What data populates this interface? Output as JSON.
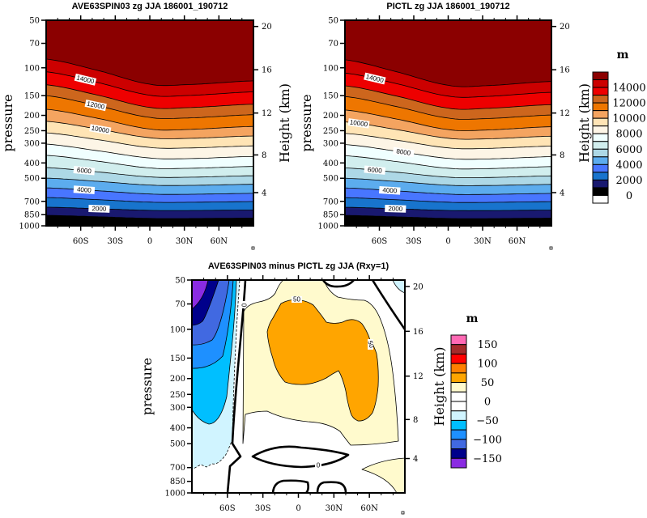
{
  "chart_data": [
    {
      "type": "contour",
      "title": "AVE63SPIN03 zg JJA 186001_190712",
      "ylabel": "pressure",
      "ylabel_right": "Height (km)",
      "xlim": [
        -90,
        90
      ],
      "x_tick_values": [
        -60,
        -30,
        0,
        30,
        60
      ],
      "x_ticks": [
        "60S",
        "30S",
        "0",
        "30N",
        "60N"
      ],
      "y_scale": "log",
      "ylim": [
        1000,
        50
      ],
      "y_ticks": [
        "50",
        "70",
        "100",
        "150",
        "200",
        "250",
        "300",
        "400",
        "500",
        "700",
        "850",
        "1000"
      ],
      "right_ticks": [
        "20",
        "16",
        "12",
        "8",
        "4"
      ],
      "levels": [
        15000,
        14000,
        13000,
        12000,
        11000,
        10000,
        9000,
        8000,
        7000,
        6000,
        5000,
        4000,
        3000,
        2000,
        1000
      ],
      "contour_lats": [
        -90,
        -45,
        0,
        30,
        90
      ],
      "contour_pressure_hPa": [
        [
          88,
          104,
          127,
          128,
          121
        ],
        [
          106,
          124,
          149,
          150,
          142
        ],
        [
          128,
          149,
          178,
          179,
          170
        ],
        [
          150,
          174,
          206,
          208,
          198
        ],
        [
          183,
          209,
          244,
          246,
          235
        ],
        [
          218,
          244,
          277,
          280,
          270
        ],
        [
          258,
          285,
          319,
          322,
          312
        ],
        [
          304,
          335,
          372,
          376,
          364
        ],
        [
          358,
          390,
          430,
          433,
          421
        ],
        [
          428,
          456,
          490,
          493,
          482
        ],
        [
          499,
          523,
          552,
          555,
          546
        ],
        [
          575,
          600,
          629,
          632,
          623
        ],
        [
          662,
          683,
          708,
          710,
          702
        ],
        [
          762,
          779,
          798,
          800,
          794
        ],
        [
          858,
          876,
          897,
          899,
          893
        ]
      ],
      "contour_labels": [
        "14000",
        "12000",
        "10000",
        "6000",
        "4000",
        "2000"
      ]
    },
    {
      "type": "contour",
      "title": "PICTL zg JJA 186001_190712",
      "ylabel": "pressure",
      "ylabel_right": "Height (km)",
      "xlim": [
        -90,
        90
      ],
      "x_tick_values": [
        -60,
        -30,
        0,
        30,
        60
      ],
      "x_ticks": [
        "60S",
        "30S",
        "0",
        "30N",
        "60N"
      ],
      "y_scale": "log",
      "ylim": [
        1000,
        50
      ],
      "y_ticks": [
        "50",
        "70",
        "100",
        "150",
        "200",
        "250",
        "300",
        "400",
        "500",
        "700",
        "850",
        "1000"
      ],
      "right_ticks": [
        "20",
        "16",
        "12",
        "8",
        "4"
      ],
      "levels": [
        15000,
        14000,
        13000,
        12000,
        11000,
        10000,
        9000,
        8000,
        7000,
        6000,
        5000,
        4000,
        3000,
        2000,
        1000
      ],
      "contour_lats": [
        -90,
        -45,
        0,
        30,
        90
      ],
      "contour_pressure_hPa": [
        [
          89,
          106,
          129,
          130,
          122
        ],
        [
          108,
          126,
          151,
          152,
          143
        ],
        [
          130,
          151,
          180,
          181,
          171
        ],
        [
          152,
          176,
          208,
          210,
          199
        ],
        [
          185,
          211,
          246,
          248,
          236
        ],
        [
          220,
          246,
          279,
          282,
          271
        ],
        [
          260,
          287,
          321,
          324,
          313
        ],
        [
          306,
          337,
          374,
          378,
          365
        ],
        [
          360,
          392,
          432,
          435,
          422
        ],
        [
          430,
          458,
          492,
          495,
          483
        ],
        [
          500,
          524,
          553,
          556,
          547
        ],
        [
          576,
          601,
          630,
          633,
          624
        ],
        [
          663,
          684,
          709,
          711,
          703
        ],
        [
          763,
          780,
          799,
          801,
          795
        ],
        [
          859,
          877,
          898,
          900,
          894
        ]
      ],
      "contour_labels": [
        "14000",
        "10000",
        "8000",
        "6000",
        "4000",
        "2000"
      ]
    },
    {
      "type": "contour",
      "title": "AVE63SPIN03 minus PICTL zg JJA (Rxy=1)",
      "ylabel": "pressure",
      "ylabel_right": "Height (km)",
      "xlim": [
        -90,
        90
      ],
      "x_tick_values": [
        -60,
        -30,
        0,
        30,
        60
      ],
      "x_ticks": [
        "60S",
        "30S",
        "0",
        "30N",
        "60N"
      ],
      "y_scale": "log",
      "ylim": [
        1000,
        50
      ],
      "y_ticks": [
        "50",
        "70",
        "100",
        "150",
        "200",
        "250",
        "300",
        "400",
        "500",
        "700",
        "850",
        "1000"
      ],
      "right_ticks": [
        "20",
        "16",
        "12",
        "8",
        "4"
      ],
      "levels": [
        150,
        125,
        100,
        75,
        50,
        25,
        0,
        -25,
        -50,
        -75,
        -100,
        -125,
        -150
      ],
      "contour_labels": [
        "0",
        "50",
        "50",
        "0"
      ]
    }
  ],
  "colorbar_top": {
    "unit": "m",
    "colors": [
      "#8B0000",
      "#CC0000",
      "#EE0000",
      "#CD661D",
      "#EE7600",
      "#F4A460",
      "#FFE4B5",
      "#FDF5E6",
      "#F0FFFF",
      "#D1EEEE",
      "#ADD8E6",
      "#5CACEE",
      "#4876FF",
      "#1874CD",
      "#191970",
      "#000000",
      "#FFFFFF"
    ],
    "labels": [
      "14000",
      "12000",
      "10000",
      "8000",
      "6000",
      "4000",
      "2000",
      "0"
    ]
  },
  "colorbar_bottom": {
    "unit": "m",
    "colors": [
      "#FF69B4",
      "#A52A2A",
      "#FF0000",
      "#FF7F00",
      "#FFA500",
      "#FFFACD",
      "#FFFFFF",
      "#FFFFFF",
      "#D0F4FF",
      "#00BFFF",
      "#1E90FF",
      "#4169E1",
      "#00008B",
      "#8A2BE2"
    ],
    "labels": [
      "150",
      "100",
      "50",
      "0",
      "−50",
      "−100",
      "−150"
    ]
  }
}
